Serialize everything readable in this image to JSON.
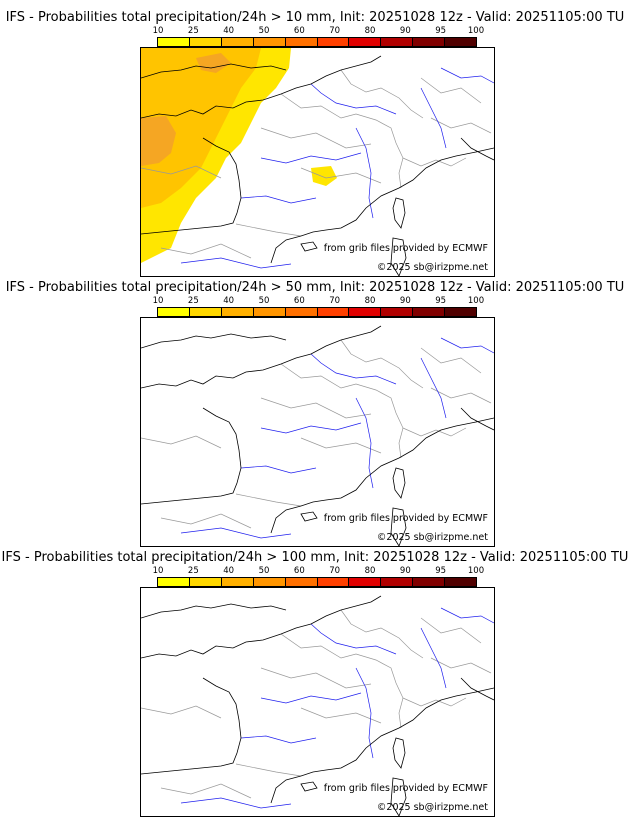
{
  "legend": {
    "ticks": [
      "10",
      "25",
      "40",
      "50",
      "60",
      "70",
      "80",
      "90",
      "95",
      "100"
    ],
    "colors": [
      "#ffff00",
      "#ffd800",
      "#ffb000",
      "#ff9500",
      "#ff7000",
      "#ff4000",
      "#e00000",
      "#b00000",
      "#800000",
      "#500000"
    ]
  },
  "credits": {
    "source": "from grib files provided by ECMWF",
    "copyright": "©2025 sb@irizpme.net"
  },
  "panels": [
    {
      "title": "IFS - Probabilities total precipitation/24h > 10 mm, Init: 20251028 12z - Valid: 20251105:00 TU",
      "has_precip": true
    },
    {
      "title": "IFS - Probabilities total precipitation/24h > 50 mm, Init: 20251028 12z - Valid: 20251105:00 TU",
      "has_precip": false
    },
    {
      "title": "IFS - Probabilities total precipitation/24h > 100 mm, Init: 20251028 12z - Valid: 20251105:00 TU",
      "has_precip": false
    }
  ],
  "map_colors": {
    "coast": "#000000",
    "borders": "#999999",
    "rivers": "#2020ee",
    "precip_low": "#ffe600",
    "precip_mid": "#ffc400",
    "precip_high": "#f5a623"
  }
}
